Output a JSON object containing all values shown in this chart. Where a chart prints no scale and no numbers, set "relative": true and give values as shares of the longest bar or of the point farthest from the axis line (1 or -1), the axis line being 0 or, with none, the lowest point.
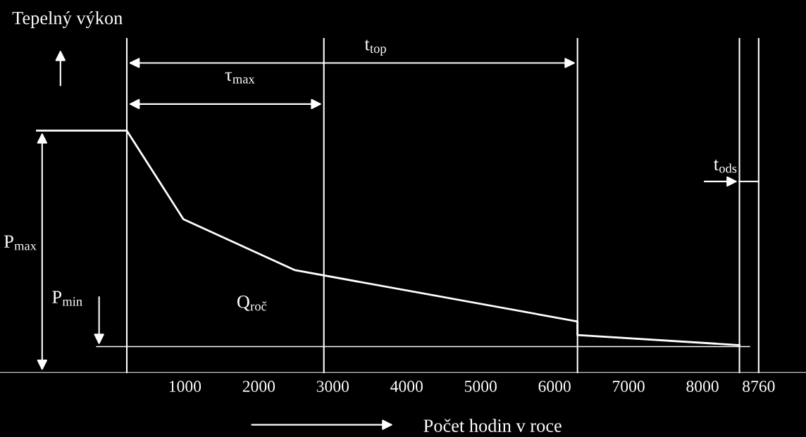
{
  "chart_data": {
    "type": "line",
    "relative": true,
    "xlabel": "Počet hodin v roce",
    "x": [
      -1000,
      215,
      980,
      2490,
      6310,
      6310,
      8500
    ],
    "series": [
      {
        "color": "#ffffff",
        "values": [
          1,
          1,
          0.634,
          0.423,
          0.211,
          0.155,
          0.113
        ]
      }
    ],
    "xlim": [
      -1500,
      9400
    ],
    "xticks": [
      1000,
      2000,
      3000,
      4000,
      5000,
      6000,
      7000,
      8000,
      8760
    ],
    "ref_lines": [
      {
        "axis": "x",
        "value": 215,
        "color": "#ffffff"
      },
      {
        "axis": "x",
        "value": 2880,
        "color": "#ffffff"
      },
      {
        "axis": "x",
        "value": 6310,
        "color": "#ffffff"
      },
      {
        "axis": "x",
        "value": 8500,
        "color": "#ffffff"
      },
      {
        "axis": "x",
        "value": 8760,
        "color": "#ffffff"
      },
      {
        "axis": "y",
        "value": 0.107,
        "color": "#ffffff"
      }
    ],
    "annotations": [
      "t$_{top}$",
      "τ$_{max}$",
      "t$_{ods}$",
      "P$_{max}$",
      "P$_{min}$",
      "Q$_{roč}$",
      "Tepelný výkon"
    ],
    "grid": false
  }
}
